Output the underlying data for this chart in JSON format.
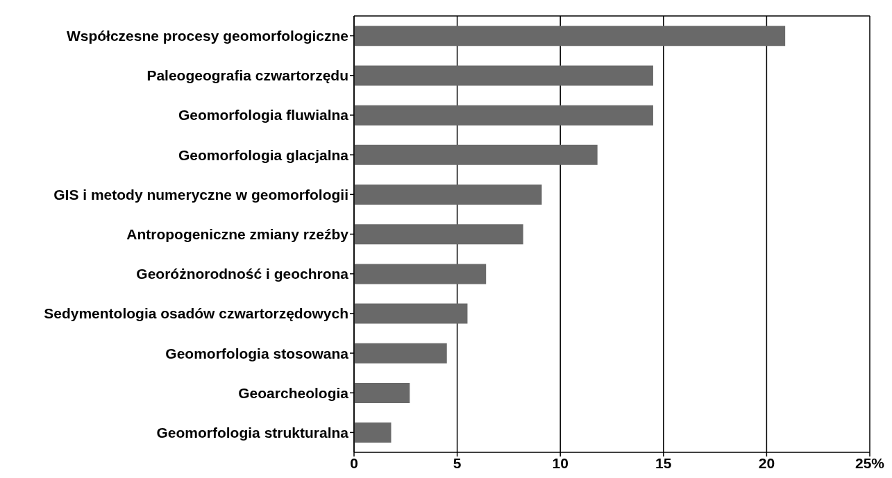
{
  "chart_data": {
    "type": "bar",
    "orientation": "horizontal",
    "categories": [
      "Współczesne procesy geomorfologiczne",
      "Paleogeografia czwartorzędu",
      "Geomorfologia fluwialna",
      "Geomorfologia glacjalna",
      "GIS i metody numeryczne w geomorfologii",
      "Antropogeniczne zmiany rzeźby",
      "Georóżnorodność i geochrona",
      "Sedymentologia osadów czwartorzędowych",
      "Geomorfologia stosowana",
      "Geoarcheologia",
      "Geomorfologia strukturalna"
    ],
    "values": [
      20.9,
      14.5,
      14.5,
      11.8,
      9.1,
      8.2,
      6.4,
      5.5,
      4.5,
      2.7,
      1.8
    ],
    "color": "#696969",
    "xlim": [
      0,
      25
    ],
    "xticks": [
      0,
      5,
      10,
      15,
      20,
      {
        "value": 25,
        "label": "25%"
      }
    ],
    "grid": "x"
  }
}
